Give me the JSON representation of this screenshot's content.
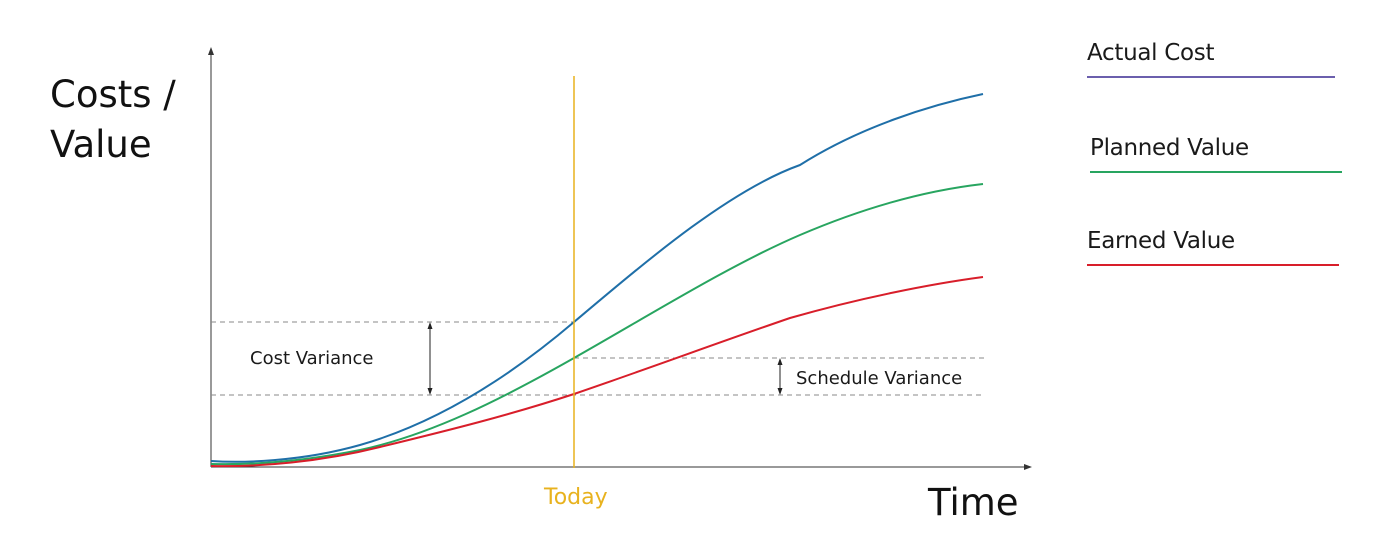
{
  "chart_data": {
    "type": "line",
    "ylabel_lines": [
      "Costs /",
      "Value"
    ],
    "xlabel": "Time",
    "marker": {
      "label": "Today",
      "color": "#e8b21e"
    },
    "legend": {
      "position": "right",
      "entries": [
        {
          "label": "Actual Cost",
          "color": "#6b5fad"
        },
        {
          "label": "Planned Value",
          "color": "#28a560"
        },
        {
          "label": "Earned Value",
          "color": "#d81e2a"
        }
      ]
    },
    "series": [
      {
        "color": "#1f6fa8"
      },
      {
        "color": "#28a560"
      },
      {
        "color": "#d81e2a"
      }
    ],
    "annotations": {
      "cost_variance": "Cost Variance",
      "schedule_variance": "Schedule Variance"
    },
    "guide_color": "#8a8a8a",
    "axis_color": "#333333"
  }
}
